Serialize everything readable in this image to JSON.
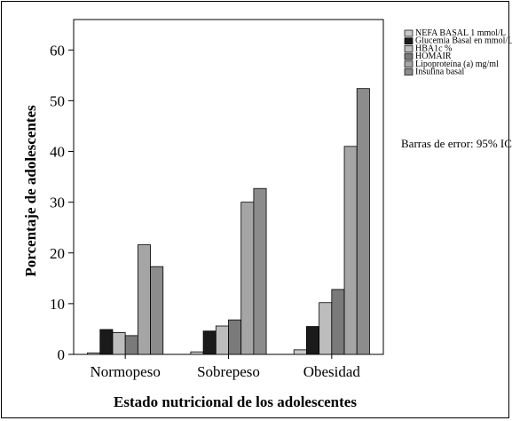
{
  "chart_data": {
    "type": "bar",
    "title": "",
    "xlabel": "Estado nutricional de los adolescentes",
    "ylabel": "Porcentaje de adolescentes",
    "ylim": [
      0,
      66
    ],
    "yticks": [
      0,
      10,
      20,
      30,
      40,
      50,
      60
    ],
    "categories": [
      "Normopeso",
      "Sobrepeso",
      "Obesidad"
    ],
    "series": [
      {
        "name": "NEFA BASAL 1 mmol/L",
        "color": "#c8c8c8",
        "values": [
          0.3,
          0.5,
          0.9
        ]
      },
      {
        "name": "Glucemia Basal en mmol/L",
        "color": "#1a1a1a",
        "values": [
          4.9,
          4.6,
          5.5
        ]
      },
      {
        "name": "HBA1c %",
        "color": "#bdbdbd",
        "values": [
          4.3,
          5.6,
          10.2
        ]
      },
      {
        "name": "HOMAIR",
        "color": "#7a7a7a",
        "values": [
          3.7,
          6.8,
          12.8
        ]
      },
      {
        "name": "Lipoproteína (a) mg/ml",
        "color": "#a5a5a5",
        "values": [
          21.6,
          30.0,
          41.0
        ]
      },
      {
        "name": "Insulina basal",
        "color": "#8c8c8c",
        "values": [
          17.3,
          32.7,
          52.4
        ]
      }
    ],
    "legend_position": "top-right",
    "grid": false,
    "note": "Barras de error: 95% IC"
  }
}
